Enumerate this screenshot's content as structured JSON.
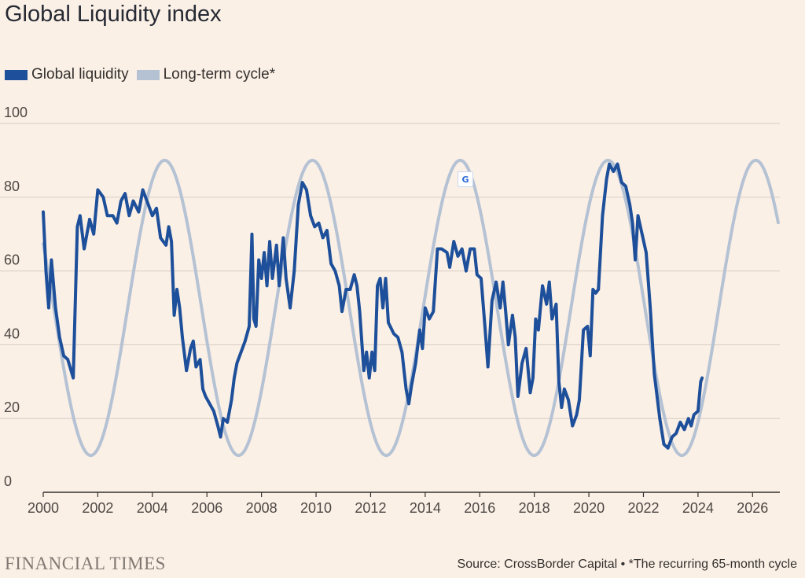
{
  "title": "Global Liquidity index",
  "legend": [
    {
      "label": "Global liquidity",
      "color": "#1d4f9a"
    },
    {
      "label": "Long-term cycle*",
      "color": "#b5c2d4"
    }
  ],
  "footer": {
    "brand": "FINANCIAL TIMES",
    "source": "Source: CrossBorder Capital • *The recurring 65-month cycle"
  },
  "translate_badge": {
    "icon": "translate-icon",
    "glyph": "G"
  },
  "colors": {
    "background": "#fbf0e6",
    "grid": "#d6ccc4",
    "axis": "#33302e"
  },
  "chart_data": {
    "type": "line",
    "title": "Global Liquidity index",
    "xlabel": "",
    "ylabel": "",
    "xlim": [
      2000,
      2027
    ],
    "ylim": [
      0,
      100
    ],
    "x_ticks": [
      2000,
      2002,
      2004,
      2006,
      2008,
      2010,
      2012,
      2014,
      2016,
      2018,
      2020,
      2022,
      2024,
      2026
    ],
    "y_ticks": [
      0,
      20,
      40,
      60,
      80,
      100
    ],
    "grid": true,
    "legend_position": "top-left",
    "series": [
      {
        "name": "Global liquidity",
        "color": "#1d4f9a",
        "points": [
          [
            2000.0,
            76
          ],
          [
            2000.1,
            60
          ],
          [
            2000.2,
            50
          ],
          [
            2000.3,
            63
          ],
          [
            2000.45,
            50
          ],
          [
            2000.6,
            42
          ],
          [
            2000.75,
            37
          ],
          [
            2000.9,
            36
          ],
          [
            2001.1,
            31
          ],
          [
            2001.25,
            72
          ],
          [
            2001.35,
            75
          ],
          [
            2001.5,
            66
          ],
          [
            2001.7,
            74
          ],
          [
            2001.85,
            70
          ],
          [
            2002.0,
            82
          ],
          [
            2002.2,
            80
          ],
          [
            2002.35,
            75
          ],
          [
            2002.55,
            75
          ],
          [
            2002.7,
            73
          ],
          [
            2002.85,
            79
          ],
          [
            2003.0,
            81
          ],
          [
            2003.15,
            75
          ],
          [
            2003.3,
            79
          ],
          [
            2003.5,
            76
          ],
          [
            2003.65,
            82
          ],
          [
            2003.8,
            79
          ],
          [
            2004.0,
            75
          ],
          [
            2004.15,
            77
          ],
          [
            2004.3,
            69
          ],
          [
            2004.5,
            67
          ],
          [
            2004.6,
            72
          ],
          [
            2004.7,
            68
          ],
          [
            2004.8,
            48
          ],
          [
            2004.9,
            55
          ],
          [
            2005.0,
            50
          ],
          [
            2005.1,
            42
          ],
          [
            2005.25,
            33
          ],
          [
            2005.4,
            39
          ],
          [
            2005.5,
            41
          ],
          [
            2005.6,
            34
          ],
          [
            2005.75,
            36
          ],
          [
            2005.85,
            28
          ],
          [
            2005.95,
            26
          ],
          [
            2006.1,
            24
          ],
          [
            2006.25,
            22
          ],
          [
            2006.4,
            18
          ],
          [
            2006.5,
            15
          ],
          [
            2006.6,
            20
          ],
          [
            2006.75,
            19
          ],
          [
            2006.9,
            25
          ],
          [
            2007.0,
            31
          ],
          [
            2007.1,
            35
          ],
          [
            2007.25,
            38
          ],
          [
            2007.4,
            41
          ],
          [
            2007.55,
            45
          ],
          [
            2007.65,
            70
          ],
          [
            2007.72,
            47
          ],
          [
            2007.8,
            45
          ],
          [
            2007.9,
            63
          ],
          [
            2008.0,
            58
          ],
          [
            2008.1,
            65
          ],
          [
            2008.2,
            56
          ],
          [
            2008.3,
            68
          ],
          [
            2008.4,
            58
          ],
          [
            2008.55,
            67
          ],
          [
            2008.65,
            56
          ],
          [
            2008.8,
            69
          ],
          [
            2008.9,
            58
          ],
          [
            2009.05,
            50
          ],
          [
            2009.2,
            60
          ],
          [
            2009.35,
            78
          ],
          [
            2009.5,
            84
          ],
          [
            2009.65,
            82
          ],
          [
            2009.8,
            75
          ],
          [
            2009.95,
            72
          ],
          [
            2010.1,
            73
          ],
          [
            2010.25,
            69
          ],
          [
            2010.4,
            71
          ],
          [
            2010.55,
            62
          ],
          [
            2010.7,
            60
          ],
          [
            2010.85,
            56
          ],
          [
            2010.95,
            49
          ],
          [
            2011.1,
            55
          ],
          [
            2011.25,
            55
          ],
          [
            2011.4,
            59
          ],
          [
            2011.5,
            56
          ],
          [
            2011.6,
            49
          ],
          [
            2011.75,
            33
          ],
          [
            2011.85,
            38
          ],
          [
            2011.95,
            31
          ],
          [
            2012.05,
            38
          ],
          [
            2012.15,
            33
          ],
          [
            2012.25,
            56
          ],
          [
            2012.35,
            58
          ],
          [
            2012.45,
            50
          ],
          [
            2012.55,
            58
          ],
          [
            2012.65,
            46
          ],
          [
            2012.85,
            43
          ],
          [
            2013.0,
            42
          ],
          [
            2013.15,
            38
          ],
          [
            2013.3,
            28
          ],
          [
            2013.4,
            24
          ],
          [
            2013.5,
            29
          ],
          [
            2013.65,
            35
          ],
          [
            2013.8,
            44
          ],
          [
            2013.9,
            39
          ],
          [
            2014.0,
            50
          ],
          [
            2014.15,
            47
          ],
          [
            2014.3,
            49
          ],
          [
            2014.45,
            66
          ],
          [
            2014.6,
            66
          ],
          [
            2014.8,
            65
          ],
          [
            2014.9,
            61
          ],
          [
            2015.05,
            68
          ],
          [
            2015.2,
            64
          ],
          [
            2015.35,
            66
          ],
          [
            2015.5,
            60
          ],
          [
            2015.65,
            66
          ],
          [
            2015.8,
            66
          ],
          [
            2015.9,
            59
          ],
          [
            2016.05,
            58
          ],
          [
            2016.2,
            44
          ],
          [
            2016.3,
            34
          ],
          [
            2016.45,
            52
          ],
          [
            2016.6,
            57
          ],
          [
            2016.75,
            50
          ],
          [
            2016.85,
            57
          ],
          [
            2016.95,
            49
          ],
          [
            2017.05,
            40
          ],
          [
            2017.2,
            48
          ],
          [
            2017.3,
            42
          ],
          [
            2017.4,
            26
          ],
          [
            2017.55,
            35
          ],
          [
            2017.7,
            39
          ],
          [
            2017.85,
            27
          ],
          [
            2017.95,
            31
          ],
          [
            2018.05,
            47
          ],
          [
            2018.15,
            44
          ],
          [
            2018.3,
            56
          ],
          [
            2018.45,
            51
          ],
          [
            2018.55,
            57
          ],
          [
            2018.65,
            47
          ],
          [
            2018.8,
            51
          ],
          [
            2018.9,
            30
          ],
          [
            2019.0,
            23
          ],
          [
            2019.1,
            28
          ],
          [
            2019.25,
            25
          ],
          [
            2019.4,
            18
          ],
          [
            2019.55,
            21
          ],
          [
            2019.65,
            25
          ],
          [
            2019.8,
            44
          ],
          [
            2019.95,
            45
          ],
          [
            2020.05,
            37
          ],
          [
            2020.15,
            55
          ],
          [
            2020.25,
            54
          ],
          [
            2020.35,
            55
          ],
          [
            2020.5,
            75
          ],
          [
            2020.65,
            85
          ],
          [
            2020.75,
            89
          ],
          [
            2020.9,
            87
          ],
          [
            2021.05,
            89
          ],
          [
            2021.2,
            84
          ],
          [
            2021.35,
            83
          ],
          [
            2021.5,
            78
          ],
          [
            2021.6,
            73
          ],
          [
            2021.7,
            63
          ],
          [
            2021.8,
            75
          ],
          [
            2021.95,
            70
          ],
          [
            2022.1,
            65
          ],
          [
            2022.25,
            50
          ],
          [
            2022.4,
            32
          ],
          [
            2022.6,
            20
          ],
          [
            2022.75,
            13
          ],
          [
            2022.9,
            12
          ],
          [
            2023.05,
            15
          ],
          [
            2023.2,
            16
          ],
          [
            2023.35,
            19
          ],
          [
            2023.5,
            17
          ],
          [
            2023.65,
            20
          ],
          [
            2023.75,
            18
          ],
          [
            2023.85,
            21
          ],
          [
            2024.0,
            22
          ],
          [
            2024.1,
            30
          ],
          [
            2024.15,
            31
          ]
        ]
      },
      {
        "name": "Long-term cycle*",
        "color": "#b5c2d4",
        "function": "sine",
        "period_months": 65,
        "min": 10,
        "max": 90,
        "peak_x": 2004.45,
        "x_range": [
          2000.0,
          2026.95
        ]
      }
    ]
  }
}
